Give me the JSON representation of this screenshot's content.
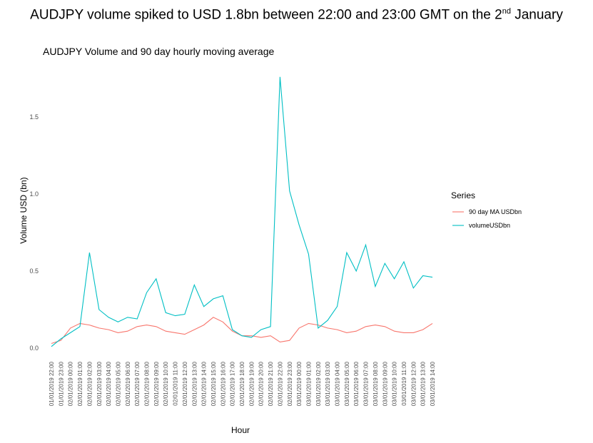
{
  "headline": {
    "pre": "AUDJPY volume spiked to USD 1.8bn between 22:00 and 23:00 GMT on the 2",
    "sup": "nd",
    "post": " January"
  },
  "chart_data": {
    "type": "line",
    "title": "AUDJPY Volume and 90 day hourly moving average",
    "xlabel": "Hour",
    "ylabel": "Volume USD (bn)",
    "ylim": [
      0,
      1.8
    ],
    "yticks": [
      "0.0",
      "0.5",
      "1.0",
      "1.5"
    ],
    "grid": false,
    "legend_position": "right",
    "legend_title": "Series",
    "categories": [
      "01/01/2019 22:00",
      "01/01/2019 23:00",
      "02/01/2019 00:00",
      "02/01/2019 01:00",
      "02/01/2019 02:00",
      "02/01/2019 03:00",
      "02/01/2019 04:00",
      "02/01/2019 05:00",
      "02/01/2019 06:00",
      "02/01/2019 07:00",
      "02/01/2019 08:00",
      "02/01/2019 09:00",
      "02/01/2019 10:00",
      "02/01/2019 11:00",
      "02/01/2019 12:00",
      "02/01/2019 13:00",
      "02/01/2019 14:00",
      "02/01/2019 15:00",
      "02/01/2019 16:00",
      "02/01/2019 17:00",
      "02/01/2019 18:00",
      "02/01/2019 19:00",
      "02/01/2019 20:00",
      "02/01/2019 21:00",
      "02/01/2019 22:00",
      "02/01/2019 23:00",
      "03/01/2019 00:00",
      "03/01/2019 01:00",
      "03/01/2019 02:00",
      "03/01/2019 03:00",
      "03/01/2019 04:00",
      "03/01/2019 05:00",
      "03/01/2019 06:00",
      "03/01/2019 07:00",
      "03/01/2019 08:00",
      "03/01/2019 09:00",
      "03/01/2019 10:00",
      "03/01/2019 11:00",
      "03/01/2019 12:00",
      "03/01/2019 13:00",
      "03/01/2019 14:00"
    ],
    "series": [
      {
        "name": "90 day MA USDbn",
        "color": "#F8766D",
        "values": [
          0.03,
          0.05,
          0.13,
          0.16,
          0.15,
          0.13,
          0.12,
          0.1,
          0.11,
          0.14,
          0.15,
          0.14,
          0.11,
          0.1,
          0.09,
          0.12,
          0.15,
          0.2,
          0.17,
          0.11,
          0.08,
          0.08,
          0.07,
          0.08,
          0.04,
          0.05,
          0.13,
          0.16,
          0.15,
          0.13,
          0.12,
          0.1,
          0.11,
          0.14,
          0.15,
          0.14,
          0.11,
          0.1,
          0.1,
          0.12,
          0.16
        ]
      },
      {
        "name": "volumeUSDbn",
        "color": "#00BFC4",
        "values": [
          0.01,
          0.06,
          0.1,
          0.14,
          0.62,
          0.25,
          0.2,
          0.17,
          0.2,
          0.19,
          0.36,
          0.45,
          0.23,
          0.21,
          0.22,
          0.41,
          0.27,
          0.32,
          0.34,
          0.12,
          0.08,
          0.07,
          0.12,
          0.14,
          1.76,
          1.02,
          0.8,
          0.61,
          0.13,
          0.18,
          0.27,
          0.62,
          0.5,
          0.67,
          0.4,
          0.55,
          0.45,
          0.56,
          0.39,
          0.47,
          0.46
        ]
      }
    ]
  }
}
